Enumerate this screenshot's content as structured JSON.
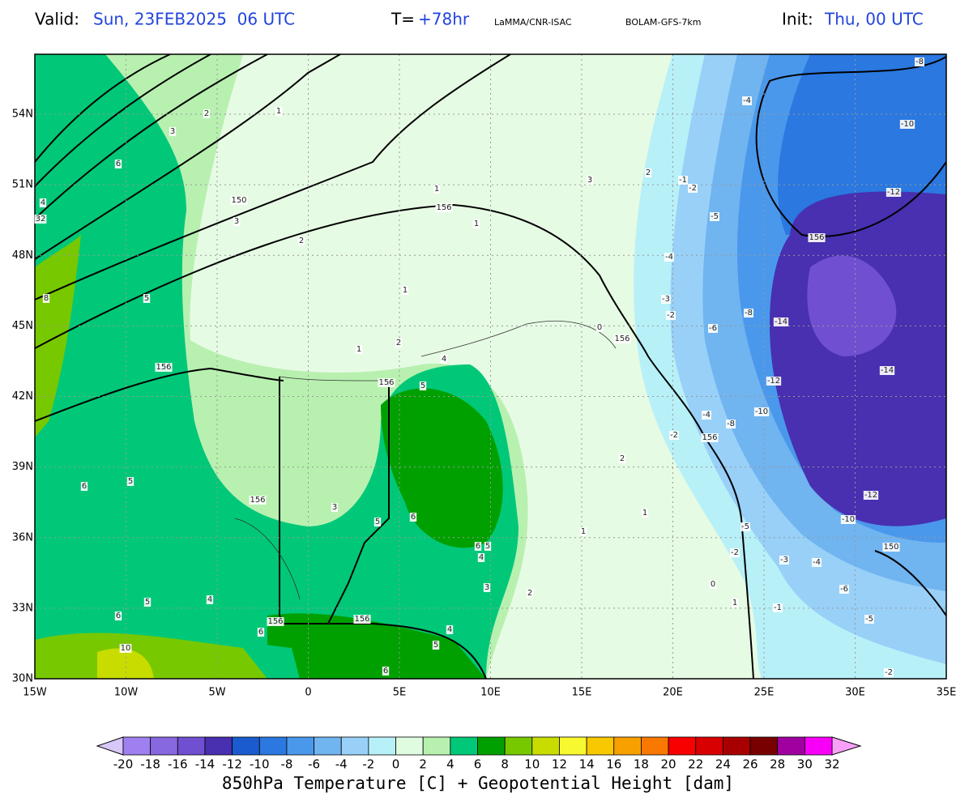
{
  "header": {
    "valid_label": "Valid:",
    "valid_time": "Sun, 23FEB2025  06 UTC",
    "lead_label": "T=",
    "lead_time": "+78hr",
    "institution": "LaMMA/CNR-ISAC",
    "model": "BOLAM-GFS-7km",
    "init_label": "Init:",
    "init_time": "Thu, 00 UTC"
  },
  "map": {
    "lat_ticks": [
      {
        "value": 54,
        "label": "54N"
      },
      {
        "value": 51,
        "label": "51N"
      },
      {
        "value": 48,
        "label": "48N"
      },
      {
        "value": 45,
        "label": "45N"
      },
      {
        "value": 42,
        "label": "42N"
      },
      {
        "value": 39,
        "label": "39N"
      },
      {
        "value": 36,
        "label": "36N"
      },
      {
        "value": 33,
        "label": "33N"
      },
      {
        "value": 30,
        "label": "30N"
      }
    ],
    "lon_ticks": [
      {
        "value": -15,
        "label": "15W"
      },
      {
        "value": -10,
        "label": "10W"
      },
      {
        "value": -5,
        "label": "5W"
      },
      0,
      {
        "value": 5,
        "label": "5E"
      },
      {
        "value": 10,
        "label": "10E"
      },
      {
        "value": 15,
        "label": "15E"
      },
      {
        "value": 20,
        "label": "20E"
      },
      {
        "value": 25,
        "label": "25E"
      },
      {
        "value": 30,
        "label": "30E"
      },
      {
        "value": 35,
        "label": "35E"
      }
    ],
    "contour_labels": [
      156,
      156,
      156,
      156,
      156,
      156,
      156,
      156,
      156,
      150,
      150,
      -8,
      -4,
      -10,
      -12,
      -5,
      -4,
      -2,
      -1,
      -3,
      -2,
      -8,
      -14,
      -6,
      -14,
      -12,
      -10,
      -8,
      -4,
      -2,
      -12,
      -10,
      -5,
      -2,
      -3,
      -4,
      -6,
      -1,
      -5,
      -2,
      0,
      1,
      2,
      3,
      4,
      5,
      6,
      6,
      10,
      5,
      6,
      4,
      6,
      5,
      5,
      8,
      32,
      4,
      6,
      3,
      2,
      3,
      2,
      1,
      1,
      2,
      1,
      4,
      5,
      6,
      5,
      6,
      5,
      4,
      3,
      2,
      1,
      1,
      0,
      2,
      1,
      1,
      3
    ]
  },
  "colorbar": {
    "ticks": [
      -20,
      -18,
      -16,
      -14,
      -12,
      -10,
      -8,
      -6,
      -4,
      -2,
      0,
      2,
      4,
      6,
      8,
      10,
      12,
      14,
      16,
      18,
      20,
      22,
      24,
      26,
      28,
      30,
      32
    ],
    "colors": [
      "#a080f0",
      "#8868e0",
      "#7050d0",
      "#4830b0",
      "#1a5ccf",
      "#2a78e0",
      "#4a98ec",
      "#70b4f0",
      "#98d0f8",
      "#b8f0f8",
      "#e0fce0",
      "#b8f0b0",
      "#00c878",
      "#00a000",
      "#78c800",
      "#c8dc00",
      "#f8f830",
      "#f8c800",
      "#f8a000",
      "#f87800",
      "#f80000",
      "#d80000",
      "#a80000",
      "#780000",
      "#a000a0",
      "#f800f8"
    ],
    "under_color": "#d8c8f8",
    "over_color": "#f8a0f8"
  },
  "footer": {
    "title": "850hPa Temperature [C] + Geopotential Height [dam]"
  }
}
